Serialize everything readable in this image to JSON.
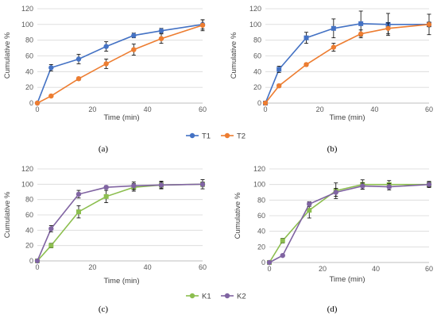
{
  "chart_data": [
    {
      "panel": "(a)",
      "type": "line",
      "xlabel": "Time (min)",
      "ylabel": "Cumulative %",
      "xlim": [
        0,
        60
      ],
      "ylim": [
        0,
        120
      ],
      "xticks": [
        0,
        20,
        40,
        60
      ],
      "yticks": [
        0,
        20,
        40,
        60,
        80,
        100,
        120
      ],
      "grid": "horizontal",
      "legend": "shared below panels (a) and (b)",
      "series": [
        {
          "name": "T1",
          "color": "#4472C4",
          "marker": "circle",
          "x": [
            0,
            5,
            15,
            25,
            35,
            45,
            60
          ],
          "y": [
            0,
            45,
            56,
            72,
            86,
            92,
            100
          ],
          "err": [
            0,
            4,
            6,
            6,
            3,
            3,
            6
          ]
        },
        {
          "name": "T2",
          "color": "#ED7D31",
          "marker": "circle",
          "x": [
            0,
            5,
            15,
            25,
            35,
            45,
            60
          ],
          "y": [
            0,
            9,
            31,
            50,
            68,
            82,
            99
          ],
          "err": [
            0,
            1,
            2,
            6,
            7,
            6,
            7
          ]
        }
      ]
    },
    {
      "panel": "(b)",
      "type": "line",
      "xlabel": "Time (min)",
      "ylabel": "Cumulative %",
      "xlim": [
        0,
        60
      ],
      "ylim": [
        0,
        120
      ],
      "xticks": [
        0,
        20,
        40,
        60
      ],
      "yticks": [
        0,
        20,
        40,
        60,
        80,
        100,
        120
      ],
      "grid": "horizontal",
      "series": [
        {
          "name": "T1",
          "color": "#4472C4",
          "marker": "square",
          "x": [
            0,
            5,
            15,
            25,
            35,
            45,
            60
          ],
          "y": [
            0,
            43,
            83,
            95,
            101,
            100,
            100
          ],
          "err": [
            0,
            4,
            7,
            12,
            16,
            14,
            13
          ]
        },
        {
          "name": "T2",
          "color": "#ED7D31",
          "marker": "circle",
          "x": [
            0,
            5,
            15,
            25,
            35,
            45,
            60
          ],
          "y": [
            0,
            22,
            49,
            71,
            88,
            95,
            100
          ],
          "err": [
            0,
            2,
            2,
            5,
            5,
            7,
            3
          ]
        }
      ]
    },
    {
      "panel": "(c)",
      "type": "line",
      "xlabel": "Time (min)",
      "ylabel": "Cumulative %",
      "xlim": [
        0,
        60
      ],
      "ylim": [
        0,
        120
      ],
      "xticks": [
        0,
        20,
        40,
        60
      ],
      "yticks": [
        0,
        20,
        40,
        60,
        80,
        100,
        120
      ],
      "grid": "horizontal",
      "legend": "shared below panels (c) and (d)",
      "series": [
        {
          "name": "K1",
          "color": "#8CBE4F",
          "marker": "square",
          "x": [
            0,
            5,
            15,
            25,
            35,
            45,
            60
          ],
          "y": [
            0,
            20,
            64,
            84,
            96,
            99,
            100
          ],
          "err": [
            0,
            3,
            8,
            8,
            5,
            4,
            3
          ]
        },
        {
          "name": "K2",
          "color": "#8064A2",
          "marker": "circle",
          "x": [
            0,
            5,
            15,
            25,
            35,
            45,
            60
          ],
          "y": [
            0,
            42,
            87,
            96,
            98,
            99,
            100
          ],
          "err": [
            0,
            4,
            5,
            2,
            5,
            5,
            6
          ]
        }
      ]
    },
    {
      "panel": "(d)",
      "type": "line",
      "xlabel": "Time (min)",
      "ylabel": "Cumulative %",
      "xlim": [
        0,
        60
      ],
      "ylim": [
        0,
        120
      ],
      "xticks": [
        0,
        20,
        40,
        60
      ],
      "yticks": [
        0,
        20,
        40,
        60,
        80,
        100,
        120
      ],
      "grid": "horizontal",
      "series": [
        {
          "name": "K1",
          "color": "#8CBE4F",
          "marker": "square",
          "x": [
            0,
            5,
            15,
            25,
            35,
            45,
            60
          ],
          "y": [
            0,
            28,
            67,
            92,
            100,
            100,
            100
          ],
          "err": [
            0,
            3,
            10,
            10,
            6,
            5,
            4
          ]
        },
        {
          "name": "K2",
          "color": "#8064A2",
          "marker": "circle",
          "x": [
            0,
            5,
            15,
            25,
            35,
            45,
            60
          ],
          "y": [
            0,
            9,
            75,
            90,
            98,
            97,
            100
          ],
          "err": [
            0,
            1,
            3,
            5,
            4,
            4,
            3
          ]
        }
      ]
    }
  ],
  "legends": [
    {
      "name": "legend-top",
      "entries": [
        {
          "label": "T1",
          "color": "#4472C4"
        },
        {
          "label": "T2",
          "color": "#ED7D31"
        }
      ]
    },
    {
      "name": "legend-bottom",
      "entries": [
        {
          "label": "K1",
          "color": "#8CBE4F"
        },
        {
          "label": "K2",
          "color": "#8064A2"
        }
      ]
    }
  ],
  "colors": {
    "grid": "#D9D9D9",
    "axis": "#BFBFBF",
    "errorbar": "#000000"
  }
}
